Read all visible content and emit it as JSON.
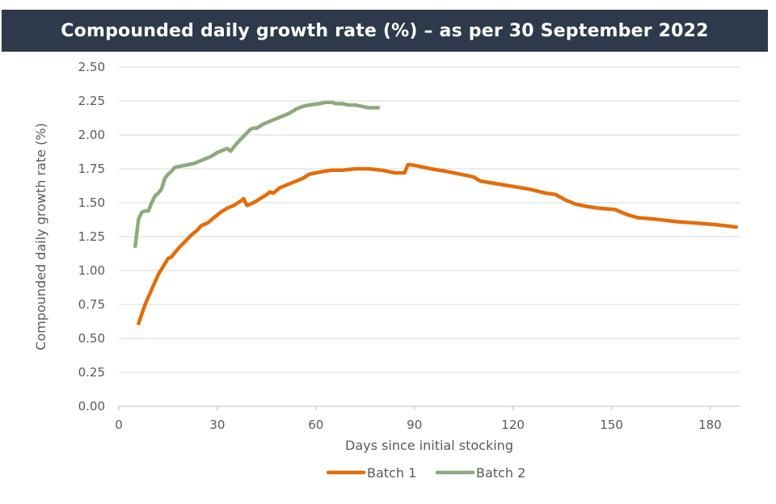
{
  "chart_data": {
    "type": "line",
    "title": "Compounded daily growth rate (%) – as per 30 September 2022",
    "xlabel": "Days since initial stocking",
    "ylabel": "Compounded daily growth rate (%)",
    "xlim": [
      0,
      189
    ],
    "ylim": [
      0,
      2.5
    ],
    "x_ticks": [
      0,
      30,
      60,
      90,
      120,
      150,
      180
    ],
    "x_tick_labels": [
      "0",
      "30",
      "60",
      "90",
      "120",
      "150",
      "180"
    ],
    "y_ticks": [
      0,
      0.25,
      0.5,
      0.75,
      1,
      1.25,
      1.5,
      1.75,
      2,
      2.25,
      2.5
    ],
    "y_tick_labels": [
      "0.00",
      "0.25",
      "0.50",
      "0.75",
      "1.00",
      "1.25",
      "1.50",
      "1.75",
      "2.00",
      "2.25",
      "2.50"
    ],
    "grid": true,
    "legend_position": "bottom",
    "series": [
      {
        "name": "Batch 1",
        "color": "#e46c0a",
        "points": [
          [
            6,
            0.61
          ],
          [
            8,
            0.75
          ],
          [
            10,
            0.86
          ],
          [
            12,
            0.97
          ],
          [
            14,
            1.05
          ],
          [
            15,
            1.09
          ],
          [
            16,
            1.1
          ],
          [
            18,
            1.16
          ],
          [
            20,
            1.21
          ],
          [
            22,
            1.26
          ],
          [
            24,
            1.3
          ],
          [
            25,
            1.33
          ],
          [
            27,
            1.35
          ],
          [
            29,
            1.39
          ],
          [
            31,
            1.43
          ],
          [
            33,
            1.46
          ],
          [
            35,
            1.48
          ],
          [
            37,
            1.51
          ],
          [
            38,
            1.53
          ],
          [
            39,
            1.48
          ],
          [
            41,
            1.5
          ],
          [
            43,
            1.53
          ],
          [
            45,
            1.56
          ],
          [
            46,
            1.58
          ],
          [
            47,
            1.57
          ],
          [
            49,
            1.61
          ],
          [
            51,
            1.63
          ],
          [
            53,
            1.65
          ],
          [
            56,
            1.68
          ],
          [
            58,
            1.71
          ],
          [
            60,
            1.72
          ],
          [
            62,
            1.73
          ],
          [
            65,
            1.74
          ],
          [
            68,
            1.74
          ],
          [
            72,
            1.75
          ],
          [
            76,
            1.75
          ],
          [
            80,
            1.74
          ],
          [
            84,
            1.72
          ],
          [
            87,
            1.72
          ],
          [
            88,
            1.78
          ],
          [
            89,
            1.78
          ],
          [
            91,
            1.77
          ],
          [
            95,
            1.75
          ],
          [
            100,
            1.73
          ],
          [
            104,
            1.71
          ],
          [
            108,
            1.69
          ],
          [
            110,
            1.66
          ],
          [
            115,
            1.64
          ],
          [
            120,
            1.62
          ],
          [
            125,
            1.6
          ],
          [
            130,
            1.57
          ],
          [
            133,
            1.56
          ],
          [
            136,
            1.52
          ],
          [
            139,
            1.49
          ],
          [
            143,
            1.47
          ],
          [
            146,
            1.46
          ],
          [
            151,
            1.45
          ],
          [
            155,
            1.41
          ],
          [
            158,
            1.39
          ],
          [
            163,
            1.38
          ],
          [
            170,
            1.36
          ],
          [
            176,
            1.35
          ],
          [
            181,
            1.34
          ],
          [
            185,
            1.33
          ],
          [
            188,
            1.32
          ]
        ]
      },
      {
        "name": "Batch 2",
        "color": "#8caa7d",
        "points": [
          [
            5,
            1.18
          ],
          [
            6,
            1.38
          ],
          [
            7,
            1.43
          ],
          [
            8,
            1.44
          ],
          [
            9,
            1.44
          ],
          [
            10,
            1.5
          ],
          [
            11,
            1.55
          ],
          [
            12,
            1.57
          ],
          [
            13,
            1.6
          ],
          [
            14,
            1.68
          ],
          [
            15,
            1.71
          ],
          [
            16,
            1.73
          ],
          [
            17,
            1.76
          ],
          [
            19,
            1.77
          ],
          [
            21,
            1.78
          ],
          [
            23,
            1.79
          ],
          [
            24,
            1.8
          ],
          [
            26,
            1.82
          ],
          [
            28,
            1.84
          ],
          [
            30,
            1.87
          ],
          [
            32,
            1.89
          ],
          [
            33,
            1.9
          ],
          [
            34,
            1.88
          ],
          [
            36,
            1.94
          ],
          [
            38,
            1.99
          ],
          [
            40,
            2.04
          ],
          [
            41,
            2.05
          ],
          [
            42,
            2.05
          ],
          [
            44,
            2.08
          ],
          [
            46,
            2.1
          ],
          [
            48,
            2.12
          ],
          [
            50,
            2.14
          ],
          [
            52,
            2.16
          ],
          [
            54,
            2.19
          ],
          [
            56,
            2.21
          ],
          [
            58,
            2.22
          ],
          [
            61,
            2.23
          ],
          [
            63,
            2.24
          ],
          [
            65,
            2.24
          ],
          [
            66,
            2.23
          ],
          [
            68,
            2.23
          ],
          [
            70,
            2.22
          ],
          [
            72,
            2.22
          ],
          [
            74,
            2.21
          ],
          [
            76,
            2.2
          ],
          [
            78,
            2.2
          ],
          [
            79,
            2.2
          ]
        ]
      }
    ]
  }
}
